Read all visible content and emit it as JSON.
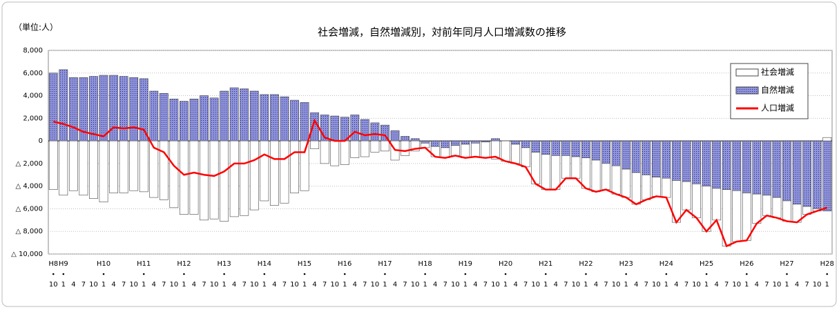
{
  "chart_data": {
    "type": "bar_line",
    "title": "社会増減，自然増減別，対前年同月人口増減数の推移",
    "unit_label": "（単位:人）",
    "categories": [
      "10",
      "1",
      "4",
      "7",
      "10",
      "1",
      "4",
      "7",
      "10",
      "1",
      "4",
      "7",
      "10",
      "1",
      "4",
      "7",
      "10",
      "1",
      "4",
      "7",
      "10",
      "1",
      "4",
      "7",
      "10",
      "1",
      "4",
      "7",
      "10",
      "1",
      "4",
      "7",
      "10",
      "1",
      "4",
      "7",
      "10",
      "1",
      "4",
      "7",
      "10",
      "1",
      "4",
      "7",
      "10",
      "1",
      "4",
      "7",
      "10",
      "1",
      "4",
      "7",
      "10",
      "1",
      "4",
      "7",
      "10",
      "1",
      "4",
      "7",
      "10",
      "1",
      "4",
      "7",
      "10",
      "1",
      "4",
      "7",
      "10",
      "1",
      "4",
      "7",
      "10",
      "1",
      "4",
      "7",
      "10",
      "1"
    ],
    "year_labels": [
      "H8",
      "H9",
      null,
      null,
      null,
      "H10",
      null,
      null,
      null,
      "H11",
      null,
      null,
      null,
      "H12",
      null,
      null,
      null,
      "H13",
      null,
      null,
      null,
      "H14",
      null,
      null,
      null,
      "H15",
      null,
      null,
      null,
      "H16",
      null,
      null,
      null,
      "H17",
      null,
      null,
      null,
      "H18",
      null,
      null,
      null,
      "H19",
      null,
      null,
      null,
      "H20",
      null,
      null,
      null,
      "H21",
      null,
      null,
      null,
      "H22",
      null,
      null,
      null,
      "H23",
      null,
      null,
      null,
      "H24",
      null,
      null,
      null,
      "H25",
      null,
      null,
      null,
      "H26",
      null,
      null,
      null,
      "H27",
      null,
      null,
      null,
      "H28"
    ],
    "series": [
      {
        "name": "社会増減",
        "color": "#ffffff",
        "values": [
          -4300,
          -4800,
          -4400,
          -4800,
          -5100,
          -5400,
          -4600,
          -4600,
          -4400,
          -4500,
          -5000,
          -5200,
          -5900,
          -6500,
          -6500,
          -7000,
          -6900,
          -7100,
          -6700,
          -6600,
          -6100,
          -5300,
          -5700,
          -5500,
          -4600,
          -4400,
          -700,
          -2000,
          -2200,
          -2100,
          -1500,
          -1400,
          -1000,
          -900,
          -1700,
          -1300,
          -900,
          -400,
          -900,
          -900,
          -900,
          -1200,
          -1200,
          -1400,
          -1600,
          -1800,
          -1700,
          -1700,
          -2800,
          -3100,
          -3000,
          -2000,
          -1900,
          -2700,
          -2800,
          -2300,
          -2500,
          -2500,
          -2800,
          -2200,
          -1700,
          -1700,
          -3700,
          -2500,
          -3000,
          -4000,
          -2800,
          -5000,
          -4500,
          -4200,
          -2600,
          -1800,
          -1800,
          -1800,
          -1600,
          -700,
          -200,
          300
        ]
      },
      {
        "name": "自然増減",
        "color": "#8f93dc",
        "values": [
          6000,
          6300,
          5600,
          5600,
          5700,
          5800,
          5800,
          5700,
          5600,
          5500,
          4400,
          4200,
          3700,
          3500,
          3700,
          4000,
          3800,
          4400,
          4700,
          4600,
          4400,
          4100,
          4100,
          3900,
          3600,
          3400,
          2500,
          2300,
          2200,
          2100,
          2300,
          1900,
          1600,
          1400,
          900,
          400,
          200,
          -200,
          -500,
          -600,
          -400,
          -300,
          -200,
          -100,
          200,
          0,
          -300,
          -600,
          -1000,
          -1200,
          -1300,
          -1300,
          -1400,
          -1500,
          -1700,
          -2000,
          -2200,
          -2500,
          -2800,
          -3000,
          -3200,
          -3300,
          -3500,
          -3600,
          -3800,
          -4000,
          -4200,
          -4300,
          -4400,
          -4600,
          -4700,
          -4800,
          -5000,
          -5300,
          -5600,
          -5800,
          -6000,
          -6200
        ]
      },
      {
        "name": "人口増減",
        "color": "#ff0000",
        "type": "line",
        "values": [
          1700,
          1500,
          1200,
          800,
          600,
          400,
          1200,
          1100,
          1200,
          1000,
          -600,
          -1000,
          -2200,
          -3000,
          -2800,
          -3000,
          -3100,
          -2700,
          -2000,
          -2000,
          -1700,
          -1200,
          -1600,
          -1600,
          -1000,
          -1000,
          1800,
          300,
          0,
          0,
          800,
          500,
          600,
          500,
          -800,
          -900,
          -700,
          -600,
          -1400,
          -1500,
          -1300,
          -1500,
          -1400,
          -1500,
          -1400,
          -1800,
          -2000,
          -2300,
          -3800,
          -4300,
          -4300,
          -3300,
          -3300,
          -4200,
          -4500,
          -4300,
          -4700,
          -5000,
          -5600,
          -5200,
          -4900,
          -5000,
          -7200,
          -6100,
          -6800,
          -8000,
          -7000,
          -9300,
          -8900,
          -8800,
          -7300,
          -6600,
          -6800,
          -7100,
          -7200,
          -6500,
          -6200,
          -5900
        ]
      }
    ],
    "ylim": [
      -10000,
      8000
    ],
    "yticks": [
      {
        "value": 8000,
        "label": "8,000"
      },
      {
        "value": 6000,
        "label": "6,000"
      },
      {
        "value": 4000,
        "label": "4,000"
      },
      {
        "value": 2000,
        "label": "2,000"
      },
      0,
      {
        "value": -2000,
        "label": "△ 2,000"
      },
      {
        "value": -4000,
        "label": "△ 4,000"
      },
      {
        "value": -6000,
        "label": "△ 6,000"
      },
      {
        "value": -8000,
        "label": "△ 8,000"
      },
      {
        "value": -10000,
        "label": "△ 10,000"
      }
    ],
    "grid": true,
    "legend": "upper right"
  }
}
